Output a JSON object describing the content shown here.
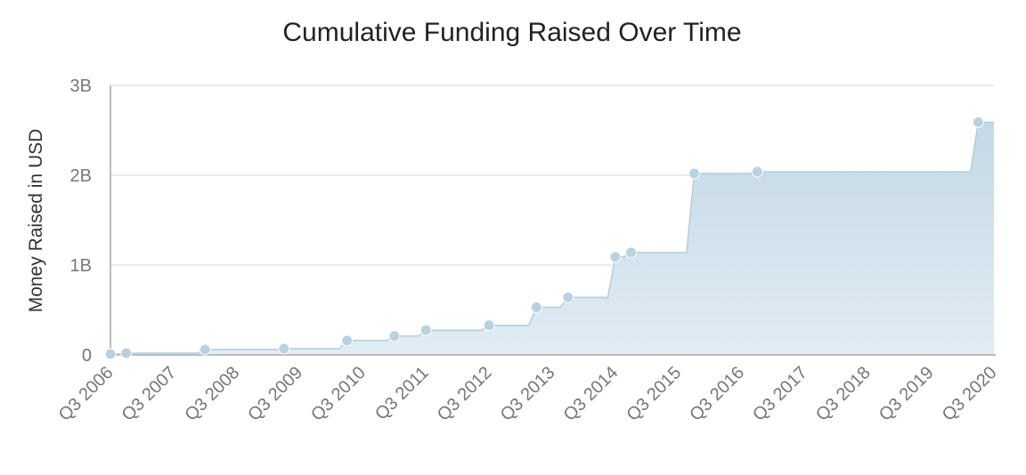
{
  "chart_data": {
    "type": "area",
    "title": "Cumulative Funding Raised Over Time",
    "xlabel": "",
    "ylabel": "Money Raised in USD",
    "x_tick_labels": [
      "Q3 2006",
      "Q3 2007",
      "Q3 2008",
      "Q3 2009",
      "Q3 2010",
      "Q3 2011",
      "Q3 2012",
      "Q3 2013",
      "Q3 2014",
      "Q3 2015",
      "Q3 2016",
      "Q3 2017",
      "Q3 2018",
      "Q3 2019",
      "Q3 2020"
    ],
    "x_tick_years": [
      2006.5,
      2007.5,
      2008.5,
      2009.5,
      2010.5,
      2011.5,
      2012.5,
      2013.5,
      2014.5,
      2015.5,
      2016.5,
      2017.5,
      2018.5,
      2019.5,
      2020.5
    ],
    "y_ticks": [
      {
        "value": 0,
        "label": "0"
      },
      {
        "value": 1000000000,
        "label": "1B"
      },
      {
        "value": 2000000000,
        "label": "2B"
      },
      {
        "value": 3000000000,
        "label": "3B"
      }
    ],
    "xlim": [
      2006.5,
      2020.5
    ],
    "ylim": [
      0,
      3000000000
    ],
    "grid": true,
    "legend": "none",
    "colors": {
      "fill_top": "#c4d8e6",
      "fill_bottom": "#e1ecf3",
      "line": "#b3cddb",
      "marker": "#bad2df"
    },
    "series": [
      {
        "points": [
          {
            "x": 2006.5,
            "y": 10000000
          },
          {
            "x": 2006.75,
            "y": 20000000
          },
          {
            "x": 2008.0,
            "y": 60000000
          },
          {
            "x": 2009.25,
            "y": 70000000
          },
          {
            "x": 2010.25,
            "y": 160000000
          },
          {
            "x": 2011.0,
            "y": 210000000
          },
          {
            "x": 2011.5,
            "y": 275000000
          },
          {
            "x": 2012.5,
            "y": 330000000
          },
          {
            "x": 2013.25,
            "y": 530000000
          },
          {
            "x": 2013.75,
            "y": 640000000
          },
          {
            "x": 2014.5,
            "y": 1090000000
          },
          {
            "x": 2014.75,
            "y": 1140000000
          },
          {
            "x": 2015.75,
            "y": 2020000000
          },
          {
            "x": 2016.75,
            "y": 2040000000
          },
          {
            "x": 2020.25,
            "y": 2590000000
          }
        ]
      }
    ]
  }
}
